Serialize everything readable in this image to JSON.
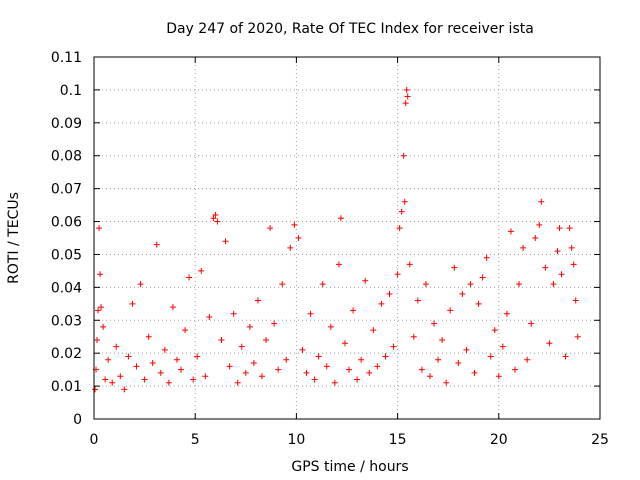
{
  "chart_data": {
    "type": "scatter",
    "title": "Day 247 of 2020, Rate Of TEC Index for receiver ista",
    "xlabel": "GPS time / hours",
    "ylabel": "ROTI / TECUs",
    "xlim": [
      0,
      25
    ],
    "ylim": [
      0,
      0.11
    ],
    "xticks": [
      0,
      5,
      10,
      15,
      20,
      25
    ],
    "xtick_labels": [
      "0",
      "5",
      "10",
      "15",
      "20",
      "25"
    ],
    "yticks": [
      0,
      0.01,
      0.02,
      0.03,
      0.04,
      0.05,
      0.06,
      0.07,
      0.08,
      0.09,
      0.1,
      0.11
    ],
    "ytick_labels": [
      "0",
      "0.01",
      "0.02",
      "0.03",
      "0.04",
      "0.05",
      "0.06",
      "0.07",
      "0.08",
      "0.09",
      "0.1",
      "0.11"
    ],
    "grid": true,
    "marker": "+",
    "series": [
      {
        "name": "ROTI",
        "color": "#ff0000",
        "points": [
          [
            0.05,
            0.009
          ],
          [
            0.1,
            0.015
          ],
          [
            0.15,
            0.024
          ],
          [
            0.2,
            0.033
          ],
          [
            0.25,
            0.058
          ],
          [
            0.3,
            0.044
          ],
          [
            0.35,
            0.034
          ],
          [
            0.45,
            0.028
          ],
          [
            0.55,
            0.012
          ],
          [
            0.7,
            0.018
          ],
          [
            0.9,
            0.011
          ],
          [
            1.1,
            0.022
          ],
          [
            1.3,
            0.013
          ],
          [
            1.5,
            0.009
          ],
          [
            1.7,
            0.019
          ],
          [
            1.9,
            0.035
          ],
          [
            2.1,
            0.016
          ],
          [
            2.3,
            0.041
          ],
          [
            2.5,
            0.012
          ],
          [
            2.7,
            0.025
          ],
          [
            2.9,
            0.017
          ],
          [
            3.1,
            0.053
          ],
          [
            3.3,
            0.014
          ],
          [
            3.5,
            0.021
          ],
          [
            3.7,
            0.011
          ],
          [
            3.9,
            0.034
          ],
          [
            4.1,
            0.018
          ],
          [
            4.3,
            0.015
          ],
          [
            4.5,
            0.027
          ],
          [
            4.7,
            0.043
          ],
          [
            4.9,
            0.012
          ],
          [
            5.1,
            0.019
          ],
          [
            5.3,
            0.045
          ],
          [
            5.5,
            0.013
          ],
          [
            5.7,
            0.031
          ],
          [
            5.9,
            0.061
          ],
          [
            6.0,
            0.062
          ],
          [
            6.1,
            0.06
          ],
          [
            6.3,
            0.024
          ],
          [
            6.5,
            0.054
          ],
          [
            6.7,
            0.016
          ],
          [
            6.9,
            0.032
          ],
          [
            7.1,
            0.011
          ],
          [
            7.3,
            0.022
          ],
          [
            7.5,
            0.014
          ],
          [
            7.7,
            0.028
          ],
          [
            7.9,
            0.017
          ],
          [
            8.1,
            0.036
          ],
          [
            8.3,
            0.013
          ],
          [
            8.5,
            0.024
          ],
          [
            8.7,
            0.058
          ],
          [
            8.9,
            0.029
          ],
          [
            9.1,
            0.015
          ],
          [
            9.3,
            0.041
          ],
          [
            9.5,
            0.018
          ],
          [
            9.7,
            0.052
          ],
          [
            9.9,
            0.059
          ],
          [
            10.1,
            0.055
          ],
          [
            10.3,
            0.021
          ],
          [
            10.5,
            0.014
          ],
          [
            10.7,
            0.032
          ],
          [
            10.9,
            0.012
          ],
          [
            11.1,
            0.019
          ],
          [
            11.3,
            0.041
          ],
          [
            11.5,
            0.016
          ],
          [
            11.7,
            0.028
          ],
          [
            11.9,
            0.011
          ],
          [
            12.1,
            0.047
          ],
          [
            12.2,
            0.061
          ],
          [
            12.4,
            0.023
          ],
          [
            12.6,
            0.015
          ],
          [
            12.8,
            0.033
          ],
          [
            13.0,
            0.012
          ],
          [
            13.2,
            0.018
          ],
          [
            13.4,
            0.042
          ],
          [
            13.6,
            0.014
          ],
          [
            13.8,
            0.027
          ],
          [
            14.0,
            0.016
          ],
          [
            14.2,
            0.035
          ],
          [
            14.4,
            0.019
          ],
          [
            14.6,
            0.038
          ],
          [
            14.8,
            0.022
          ],
          [
            15.0,
            0.044
          ],
          [
            15.1,
            0.058
          ],
          [
            15.2,
            0.063
          ],
          [
            15.3,
            0.08
          ],
          [
            15.35,
            0.066
          ],
          [
            15.4,
            0.096
          ],
          [
            15.45,
            0.1
          ],
          [
            15.5,
            0.098
          ],
          [
            15.6,
            0.047
          ],
          [
            15.8,
            0.025
          ],
          [
            16.0,
            0.036
          ],
          [
            16.2,
            0.015
          ],
          [
            16.4,
            0.041
          ],
          [
            16.6,
            0.013
          ],
          [
            16.8,
            0.029
          ],
          [
            17.0,
            0.018
          ],
          [
            17.2,
            0.024
          ],
          [
            17.4,
            0.011
          ],
          [
            17.6,
            0.033
          ],
          [
            17.8,
            0.046
          ],
          [
            18.0,
            0.017
          ],
          [
            18.2,
            0.038
          ],
          [
            18.4,
            0.021
          ],
          [
            18.6,
            0.041
          ],
          [
            18.8,
            0.014
          ],
          [
            19.0,
            0.035
          ],
          [
            19.2,
            0.043
          ],
          [
            19.4,
            0.049
          ],
          [
            19.6,
            0.019
          ],
          [
            19.8,
            0.027
          ],
          [
            20.0,
            0.013
          ],
          [
            20.2,
            0.022
          ],
          [
            20.4,
            0.032
          ],
          [
            20.6,
            0.057
          ],
          [
            20.8,
            0.015
          ],
          [
            21.0,
            0.041
          ],
          [
            21.2,
            0.052
          ],
          [
            21.4,
            0.018
          ],
          [
            21.6,
            0.029
          ],
          [
            21.8,
            0.055
          ],
          [
            22.0,
            0.059
          ],
          [
            22.1,
            0.066
          ],
          [
            22.3,
            0.046
          ],
          [
            22.5,
            0.023
          ],
          [
            22.7,
            0.041
          ],
          [
            22.9,
            0.051
          ],
          [
            23.0,
            0.058
          ],
          [
            23.1,
            0.044
          ],
          [
            23.3,
            0.019
          ],
          [
            23.5,
            0.058
          ],
          [
            23.6,
            0.052
          ],
          [
            23.7,
            0.047
          ],
          [
            23.8,
            0.036
          ],
          [
            23.9,
            0.025
          ]
        ]
      }
    ]
  }
}
